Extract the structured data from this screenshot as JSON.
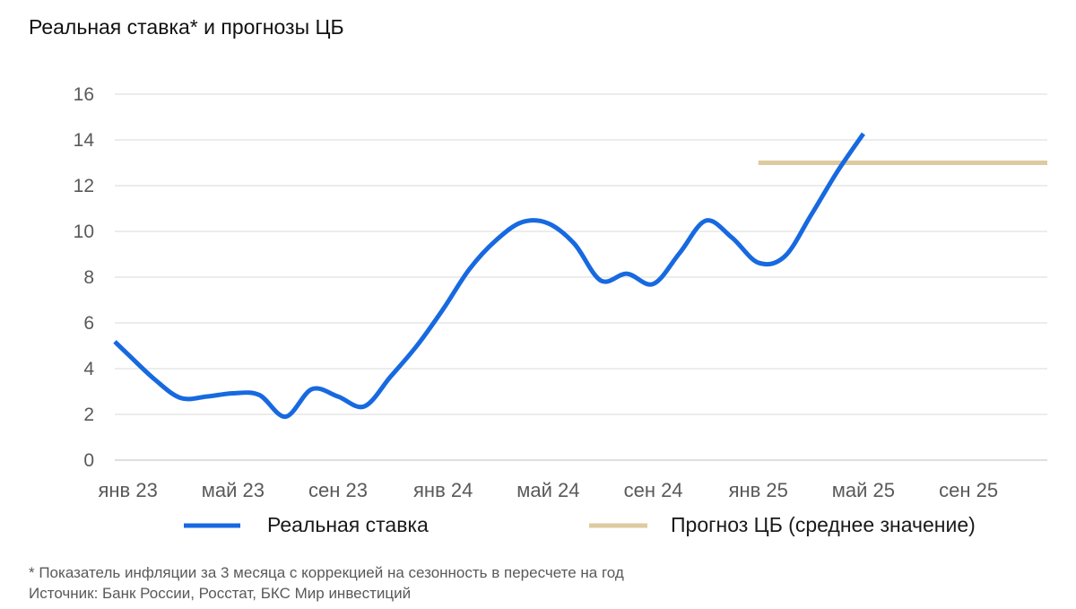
{
  "chart_data": {
    "type": "line",
    "title": "Реальная ставка* и прогнозы ЦБ",
    "xlabel": "",
    "ylabel": "",
    "xlim": [
      -0.5,
      35
    ],
    "ylim": [
      0,
      16
    ],
    "y_ticks": [
      0,
      2,
      4,
      6,
      8,
      10,
      12,
      14,
      16
    ],
    "x_ticks": [
      0,
      4,
      8,
      12,
      16,
      20,
      24,
      28,
      32
    ],
    "x_tick_labels": [
      "янв 23",
      "май 23",
      "сен 23",
      "янв 24",
      "май 24",
      "сен 24",
      "янв 25",
      "май 25",
      "сен 25"
    ],
    "grid": true,
    "legend_position": "bottom",
    "series": [
      {
        "name": "Реальная ставка",
        "color": "#1769e0",
        "x": [
          -0.5,
          0,
          1,
          2,
          3,
          4,
          5,
          6,
          7,
          8,
          9,
          10,
          11,
          12,
          13,
          14,
          15,
          16,
          17,
          18,
          19,
          20,
          21,
          22,
          23,
          24,
          25,
          26,
          27,
          28
        ],
        "y": [
          5.18,
          4.63,
          3.55,
          2.72,
          2.78,
          2.92,
          2.85,
          1.9,
          3.1,
          2.78,
          2.35,
          3.65,
          5.0,
          6.6,
          8.35,
          9.6,
          10.4,
          10.35,
          9.45,
          7.85,
          8.15,
          7.7,
          9.05,
          10.47,
          9.72,
          8.63,
          8.9,
          10.7,
          12.6,
          14.27
        ]
      },
      {
        "name": "Прогноз ЦБ (среднее значение)",
        "color": "#ddcb9f",
        "x": [
          24,
          35
        ],
        "y": [
          13,
          13
        ]
      }
    ]
  },
  "notes": {
    "footnote": "* Показатель инфляции за 3 месяца с коррекцией на сезонность в пересчете на год",
    "source": "Источник: Банк России, Росстат, БКС Мир инвестиций"
  }
}
